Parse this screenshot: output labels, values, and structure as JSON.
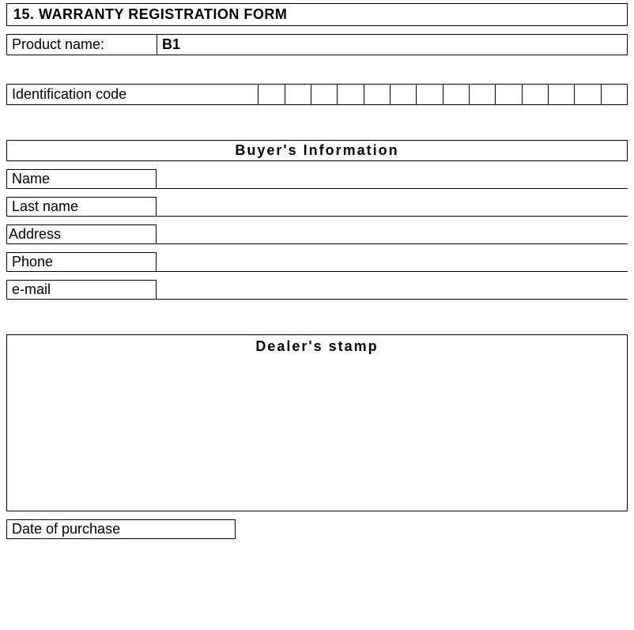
{
  "form": {
    "title": "15.  WARRANTY REGISTRATION FORM",
    "product_name_label": "Product name:",
    "product_name_value": "B1",
    "identification_code_label": "Identification code",
    "identification_code_cells": 14,
    "buyers_info_heading": "Buyer's Information",
    "fields": {
      "name_label": "Name",
      "last_name_label": "Last name",
      "address_label": "Address",
      "phone_label": "Phone",
      "email_label": "e-mail"
    },
    "dealers_stamp_heading": "Dealer's stamp",
    "date_of_purchase_label": "Date of purchase"
  },
  "style": {
    "font_family": "Arial, Helvetica, sans-serif",
    "text_color": "#000000",
    "border_color": "#000000",
    "background_color": "#ffffff",
    "base_font_size_pt": 14
  }
}
